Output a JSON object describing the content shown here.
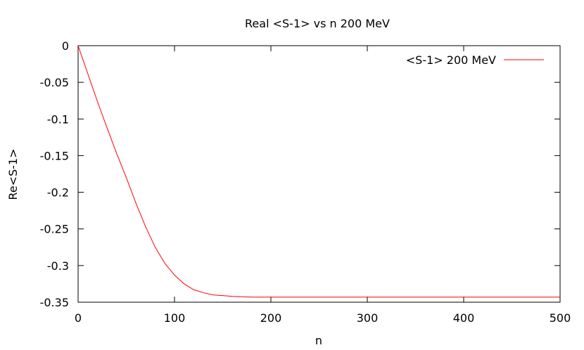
{
  "chart_data": {
    "type": "line",
    "title": "Real <S-1> vs n 200 MeV",
    "xlabel": "n",
    "ylabel": "Re<S-1>",
    "xlim": [
      0,
      500
    ],
    "ylim": [
      -0.35,
      0
    ],
    "xticks": [
      0,
      100,
      200,
      300,
      400,
      500
    ],
    "xtick_labels": [
      "0",
      "100",
      "200",
      "300",
      "400",
      "500"
    ],
    "yticks": [
      0,
      -0.05,
      -0.1,
      -0.15,
      -0.2,
      -0.25,
      -0.3,
      -0.35
    ],
    "ytick_labels": [
      "0",
      "-0.05",
      "-0.1",
      "-0.15",
      "-0.2",
      "-0.25",
      "-0.3",
      "-0.35"
    ],
    "grid": false,
    "legend_position": "top-right",
    "series": [
      {
        "name": "<S-1> 200 MeV",
        "color": "#ff0000",
        "x": [
          0,
          5,
          10,
          20,
          30,
          40,
          50,
          60,
          70,
          80,
          90,
          100,
          110,
          120,
          130,
          140,
          150,
          160,
          180,
          200,
          250,
          300,
          350,
          400,
          450,
          500
        ],
        "y": [
          0,
          -0.019,
          -0.038,
          -0.076,
          -0.112,
          -0.147,
          -0.18,
          -0.215,
          -0.247,
          -0.275,
          -0.297,
          -0.313,
          -0.325,
          -0.333,
          -0.337,
          -0.34,
          -0.341,
          -0.342,
          -0.343,
          -0.343,
          -0.343,
          -0.343,
          -0.343,
          -0.343,
          -0.343,
          -0.343
        ]
      }
    ]
  }
}
